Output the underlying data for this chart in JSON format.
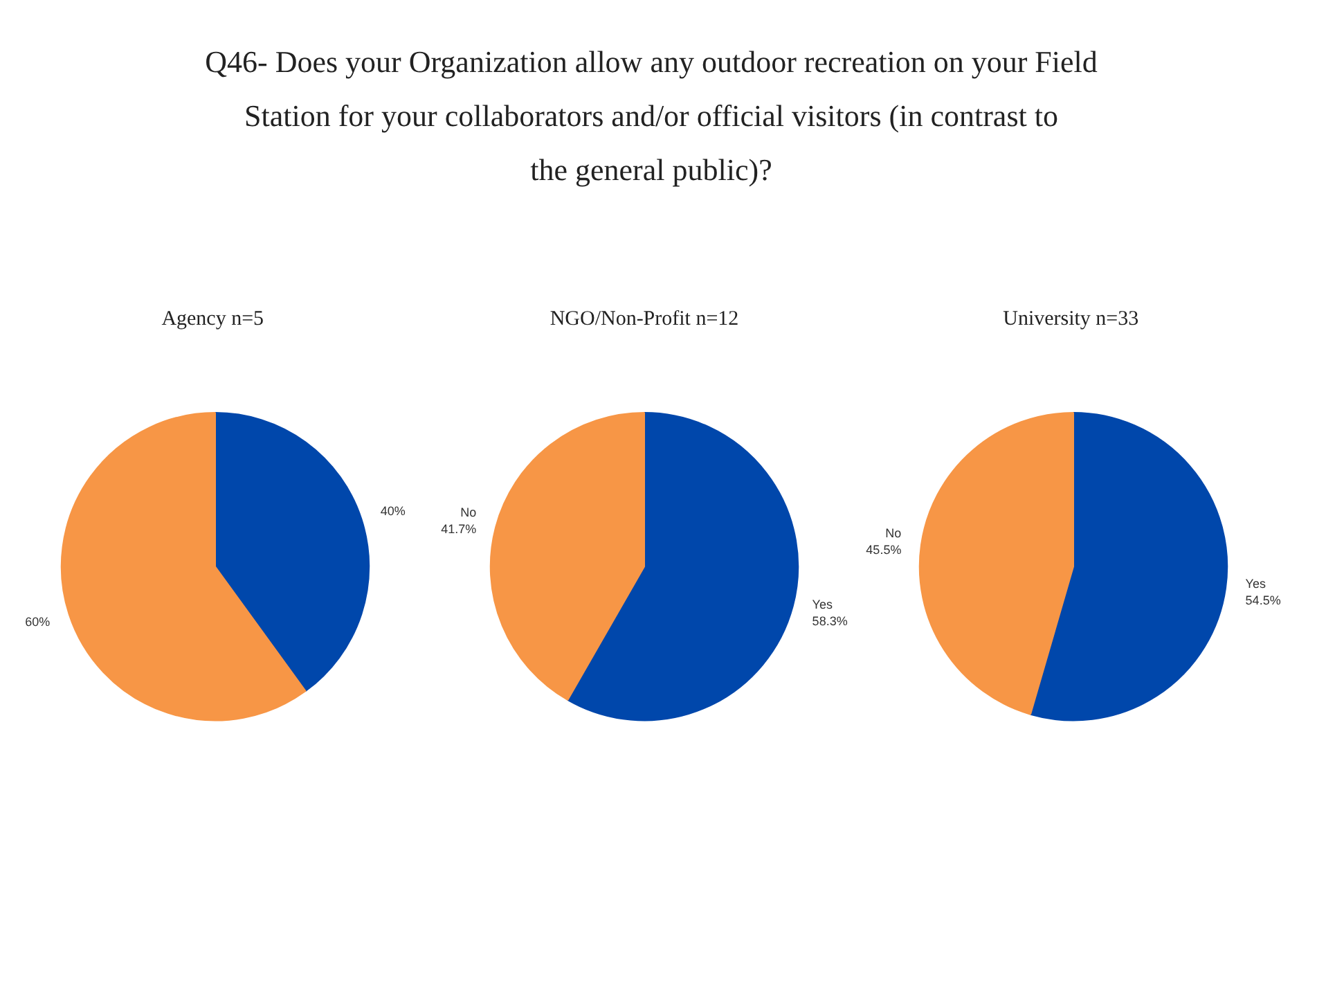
{
  "chart_data": [
    {
      "type": "pie",
      "title": "Agency  n=5",
      "annotations": [
        "Q46- Does your Organization allow any outdoor recreation on your Field Station for your collaborators and/or official visitors (in contrast to the general public)?"
      ],
      "categories": [
        null,
        null
      ],
      "values": [
        40,
        60
      ],
      "colors": [
        "#0047ab",
        "#f79646"
      ],
      "value_labels": [
        "40%",
        "60%"
      ]
    },
    {
      "type": "pie",
      "title": "NGO/Non-Profit n=12",
      "categories": [
        "Yes",
        "No"
      ],
      "values": [
        58.3,
        41.7
      ],
      "colors": [
        "#0047ab",
        "#f79646"
      ],
      "value_labels": [
        "58.3%",
        "41.7%"
      ]
    },
    {
      "type": "pie",
      "title": "University  n=33",
      "categories": [
        "Yes",
        "No"
      ],
      "values": [
        54.5,
        45.5
      ],
      "colors": [
        "#0047ab",
        "#f79646"
      ],
      "value_labels": [
        "54.5%",
        "45.5%"
      ]
    }
  ]
}
